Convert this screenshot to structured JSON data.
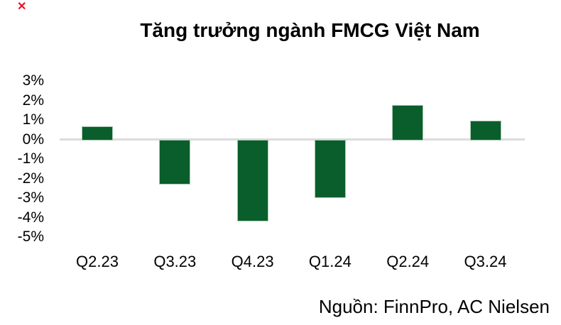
{
  "page": {
    "background": "#FFFFFF"
  },
  "overlay_marker": {
    "glyph": "✕",
    "color": "#E8112D"
  },
  "chart_data": {
    "type": "bar",
    "title": "Tăng trưởng ngành FMCG Việt Nam",
    "categories": [
      "Q2.23",
      "Q3.23",
      "Q4.23",
      "Q1.24",
      "Q2.24",
      "Q3.24"
    ],
    "values": [
      0.7,
      -2.3,
      -4.2,
      -3.0,
      1.8,
      1.0
    ],
    "unit": "%",
    "xlabel": "",
    "ylabel": "",
    "ylim": [
      -5,
      3
    ],
    "yticks": [
      3,
      2,
      1,
      0,
      -1,
      -2,
      -3,
      -4,
      -5
    ],
    "ytick_labels": [
      "3%",
      "2%",
      "1%",
      "0%",
      "-1%",
      "-2%",
      "-3%",
      "-4%",
      "-5%"
    ],
    "grid": "zero-line-only",
    "legend": "none",
    "bar_color": "#0A5E2C",
    "bar_border_color": "#A6C9B0",
    "gridline_color": "#DCDCDC",
    "title_color": "#000000",
    "text_color": "#000000"
  },
  "footer": {
    "source": "Nguồn: FinnPro, AC Nielsen"
  }
}
